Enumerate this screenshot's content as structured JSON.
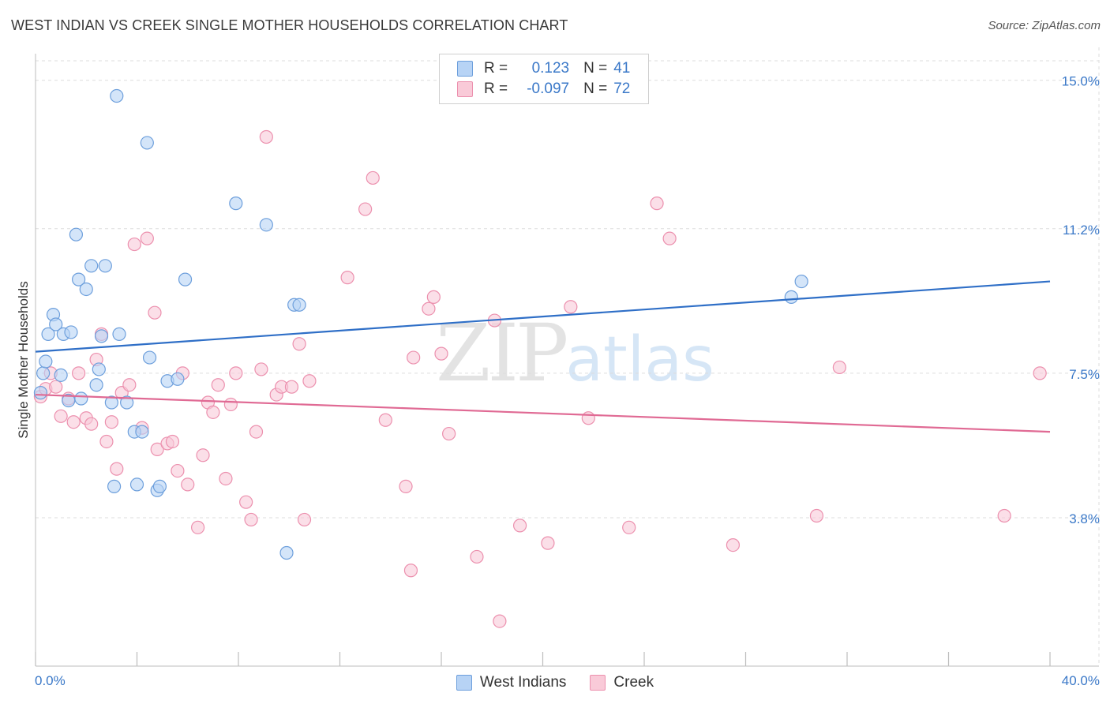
{
  "title": "WEST INDIAN VS CREEK SINGLE MOTHER HOUSEHOLDS CORRELATION CHART",
  "source": "Source: ZipAtlas.com",
  "watermark": {
    "zip": "ZIP",
    "atlas": "atlas"
  },
  "legend": {
    "rows": [
      {
        "r_label": "R =",
        "r_value": "0.123",
        "n_label": "N =",
        "n_value": "41"
      },
      {
        "r_label": "R =",
        "r_value": "-0.097",
        "n_label": "N =",
        "n_value": "72"
      }
    ]
  },
  "colors": {
    "blue_fill": "#b7d3f5",
    "blue_stroke": "#6d9fdc",
    "blue_line": "#2f6fc7",
    "pink_fill": "#f9cad8",
    "pink_stroke": "#ec90ae",
    "pink_line": "#e06a94",
    "tick_label": "#3a78c8",
    "grid": "#dddddd"
  },
  "chart_data": {
    "type": "scatter",
    "title": "WEST INDIAN VS CREEK SINGLE MOTHER HOUSEHOLDS CORRELATION CHART",
    "xlabel": "",
    "ylabel": "Single Mother Households",
    "xlim": [
      0,
      40
    ],
    "ylim": [
      0,
      15.5
    ],
    "x_tick_labels": [
      "0.0%",
      "40.0%"
    ],
    "y_ticks": [
      {
        "value": 3.8,
        "label": "3.8%"
      },
      {
        "value": 7.5,
        "label": "7.5%"
      },
      {
        "value": 11.2,
        "label": "11.2%"
      },
      {
        "value": 15.0,
        "label": "15.0%"
      }
    ],
    "grid": true,
    "series": [
      {
        "name": "West Indians",
        "r": 0.123,
        "n": 41,
        "trend": {
          "x": [
            0,
            40
          ],
          "y": [
            8.05,
            9.85
          ]
        },
        "points": [
          {
            "x": 0.2,
            "y": 7.0
          },
          {
            "x": 0.3,
            "y": 7.5
          },
          {
            "x": 0.4,
            "y": 7.8
          },
          {
            "x": 0.5,
            "y": 8.5
          },
          {
            "x": 0.7,
            "y": 9.0
          },
          {
            "x": 0.8,
            "y": 8.75
          },
          {
            "x": 1.0,
            "y": 7.45
          },
          {
            "x": 1.1,
            "y": 8.5
          },
          {
            "x": 1.3,
            "y": 6.8
          },
          {
            "x": 1.4,
            "y": 8.55
          },
          {
            "x": 1.6,
            "y": 11.05
          },
          {
            "x": 1.7,
            "y": 9.9
          },
          {
            "x": 1.8,
            "y": 6.85
          },
          {
            "x": 2.0,
            "y": 9.65
          },
          {
            "x": 2.2,
            "y": 10.25
          },
          {
            "x": 2.4,
            "y": 7.2
          },
          {
            "x": 2.5,
            "y": 7.6
          },
          {
            "x": 2.6,
            "y": 8.45
          },
          {
            "x": 2.75,
            "y": 10.25
          },
          {
            "x": 3.0,
            "y": 6.75
          },
          {
            "x": 3.1,
            "y": 4.6
          },
          {
            "x": 3.3,
            "y": 8.5
          },
          {
            "x": 3.2,
            "y": 14.6
          },
          {
            "x": 3.6,
            "y": 6.75
          },
          {
            "x": 3.9,
            "y": 6.0
          },
          {
            "x": 4.0,
            "y": 4.65
          },
          {
            "x": 4.2,
            "y": 6.0
          },
          {
            "x": 4.4,
            "y": 13.4
          },
          {
            "x": 4.5,
            "y": 7.9
          },
          {
            "x": 4.8,
            "y": 4.5
          },
          {
            "x": 4.9,
            "y": 4.6
          },
          {
            "x": 5.2,
            "y": 7.3
          },
          {
            "x": 5.6,
            "y": 7.35
          },
          {
            "x": 5.9,
            "y": 9.9
          },
          {
            "x": 7.9,
            "y": 11.85
          },
          {
            "x": 9.1,
            "y": 11.3
          },
          {
            "x": 9.9,
            "y": 2.9
          },
          {
            "x": 10.2,
            "y": 9.25
          },
          {
            "x": 10.4,
            "y": 9.25
          },
          {
            "x": 29.8,
            "y": 9.45
          },
          {
            "x": 30.2,
            "y": 9.85
          }
        ]
      },
      {
        "name": "Creek",
        "r": -0.097,
        "n": 72,
        "trend": {
          "x": [
            0,
            40
          ],
          "y": [
            6.95,
            6.0
          ]
        },
        "points": [
          {
            "x": 0.2,
            "y": 6.9
          },
          {
            "x": 0.4,
            "y": 7.1
          },
          {
            "x": 0.6,
            "y": 7.5
          },
          {
            "x": 0.8,
            "y": 7.15
          },
          {
            "x": 1.0,
            "y": 6.4
          },
          {
            "x": 1.3,
            "y": 6.85
          },
          {
            "x": 1.5,
            "y": 6.25
          },
          {
            "x": 1.7,
            "y": 7.5
          },
          {
            "x": 2.0,
            "y": 6.35
          },
          {
            "x": 2.2,
            "y": 6.2
          },
          {
            "x": 2.4,
            "y": 7.85
          },
          {
            "x": 2.6,
            "y": 8.5
          },
          {
            "x": 2.8,
            "y": 5.75
          },
          {
            "x": 3.0,
            "y": 6.25
          },
          {
            "x": 3.2,
            "y": 5.05
          },
          {
            "x": 3.4,
            "y": 7.0
          },
          {
            "x": 3.7,
            "y": 7.2
          },
          {
            "x": 3.9,
            "y": 10.8
          },
          {
            "x": 4.2,
            "y": 6.1
          },
          {
            "x": 4.4,
            "y": 10.95
          },
          {
            "x": 4.7,
            "y": 9.05
          },
          {
            "x": 4.8,
            "y": 5.55
          },
          {
            "x": 5.2,
            "y": 5.7
          },
          {
            "x": 5.4,
            "y": 5.75
          },
          {
            "x": 5.6,
            "y": 5.0
          },
          {
            "x": 5.8,
            "y": 7.5
          },
          {
            "x": 6.0,
            "y": 4.65
          },
          {
            "x": 6.4,
            "y": 3.55
          },
          {
            "x": 6.6,
            "y": 5.4
          },
          {
            "x": 6.8,
            "y": 6.75
          },
          {
            "x": 7.0,
            "y": 6.5
          },
          {
            "x": 7.2,
            "y": 7.2
          },
          {
            "x": 7.5,
            "y": 4.8
          },
          {
            "x": 7.7,
            "y": 6.7
          },
          {
            "x": 7.9,
            "y": 7.5
          },
          {
            "x": 8.3,
            "y": 4.2
          },
          {
            "x": 8.5,
            "y": 3.75
          },
          {
            "x": 8.7,
            "y": 6.0
          },
          {
            "x": 8.9,
            "y": 7.6
          },
          {
            "x": 9.1,
            "y": 13.55
          },
          {
            "x": 9.5,
            "y": 6.95
          },
          {
            "x": 9.7,
            "y": 7.15
          },
          {
            "x": 10.1,
            "y": 7.15
          },
          {
            "x": 10.4,
            "y": 8.25
          },
          {
            "x": 10.6,
            "y": 3.75
          },
          {
            "x": 10.8,
            "y": 7.3
          },
          {
            "x": 12.3,
            "y": 9.95
          },
          {
            "x": 13.0,
            "y": 11.7
          },
          {
            "x": 13.3,
            "y": 12.5
          },
          {
            "x": 13.8,
            "y": 6.3
          },
          {
            "x": 14.6,
            "y": 4.6
          },
          {
            "x": 14.8,
            "y": 2.45
          },
          {
            "x": 14.9,
            "y": 7.9
          },
          {
            "x": 15.5,
            "y": 9.15
          },
          {
            "x": 15.7,
            "y": 9.45
          },
          {
            "x": 16.0,
            "y": 8.0
          },
          {
            "x": 16.3,
            "y": 5.95
          },
          {
            "x": 17.4,
            "y": 2.8
          },
          {
            "x": 18.1,
            "y": 8.85
          },
          {
            "x": 18.3,
            "y": 1.15
          },
          {
            "x": 19.1,
            "y": 3.6
          },
          {
            "x": 20.2,
            "y": 3.15
          },
          {
            "x": 21.1,
            "y": 9.2
          },
          {
            "x": 21.8,
            "y": 6.35
          },
          {
            "x": 23.4,
            "y": 3.55
          },
          {
            "x": 24.5,
            "y": 11.85
          },
          {
            "x": 25.0,
            "y": 10.95
          },
          {
            "x": 27.5,
            "y": 3.1
          },
          {
            "x": 30.8,
            "y": 3.85
          },
          {
            "x": 31.7,
            "y": 7.65
          },
          {
            "x": 38.2,
            "y": 3.85
          },
          {
            "x": 39.6,
            "y": 7.5
          }
        ]
      }
    ]
  }
}
